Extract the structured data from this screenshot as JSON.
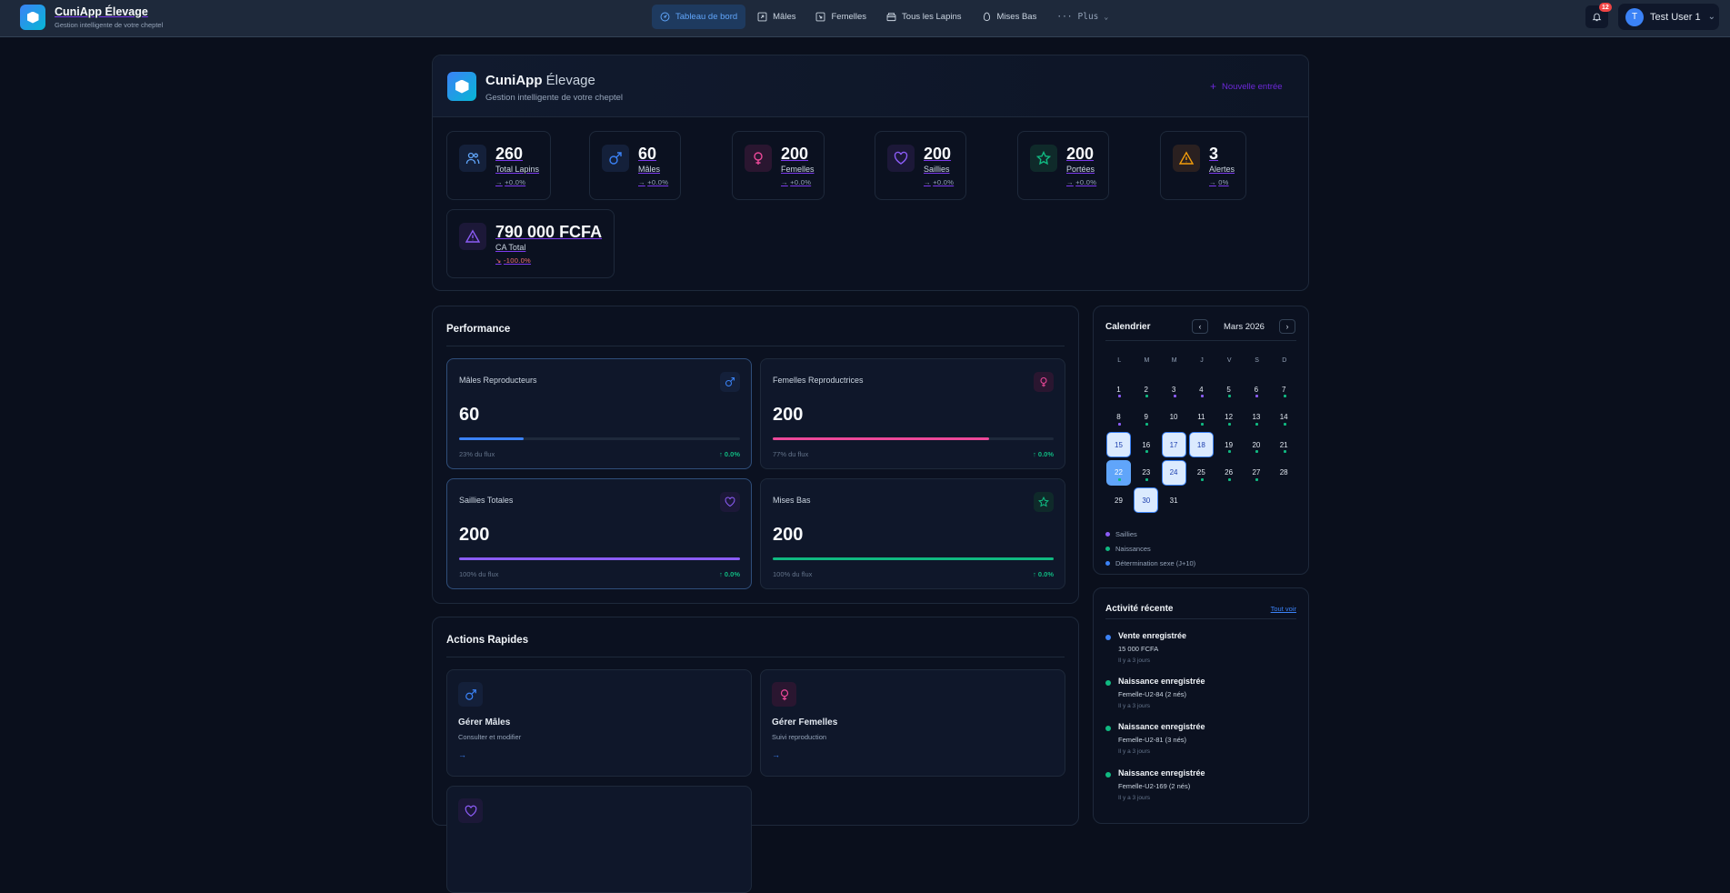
{
  "navbar": {
    "app_title": "CuniApp Élevage",
    "app_subtitle": "Gestion intelligente de votre cheptel",
    "menu": [
      {
        "label": "Tableau de bord",
        "icon": "gauge-icon",
        "active": true
      },
      {
        "label": "Mâles",
        "icon": "arrow-up-right-box-icon"
      },
      {
        "label": "Femelles",
        "icon": "arrow-down-right-box-icon"
      },
      {
        "label": "Tous les Lapins",
        "icon": "tray-icon"
      },
      {
        "label": "Mises Bas",
        "icon": "egg-icon"
      },
      {
        "label": "Plus",
        "icon": "ellipsis-icon"
      }
    ],
    "notifications_count": "12",
    "user": {
      "initial": "T",
      "name": "Test User 1"
    }
  },
  "hero": {
    "title_bold": "CuniApp",
    "title_light": "Élevage",
    "subtitle": "Gestion intelligente de votre cheptel",
    "new_entry_label": "Nouvelle entrée"
  },
  "stats": [
    {
      "value": "260",
      "label": "Total Lapins",
      "trend": "→",
      "change": "+0.0%",
      "color": "#60a5fa",
      "bg": "#14203a"
    },
    {
      "value": "60",
      "label": "Mâles",
      "trend": "→",
      "change": "+0.0%",
      "color": "#3b82f6",
      "bg": "#14203a"
    },
    {
      "value": "200",
      "label": "Femelles",
      "trend": "→",
      "change": "+0.0%",
      "color": "#ec4899",
      "bg": "#2a1630"
    },
    {
      "value": "200",
      "label": "Saillies",
      "trend": "→",
      "change": "+0.0%",
      "color": "#8b5cf6",
      "bg": "#1c1838"
    },
    {
      "value": "200",
      "label": "Portées",
      "trend": "→",
      "change": "+0.0%",
      "color": "#10b981",
      "bg": "#0f2a2a"
    },
    {
      "value": "3",
      "label": "Alertes",
      "trend": "→",
      "change": "0%",
      "color": "#f59e0b",
      "bg": "#2a2020"
    },
    {
      "value": "790 000 FCFA",
      "label": "CA Total",
      "trend": "↘",
      "change": "-100.0%",
      "color": "#8b5cf6",
      "bg": "#1c1838"
    }
  ],
  "performance": {
    "title": "Performance",
    "cards": [
      {
        "title": "Mâles Reproducteurs",
        "value": "60",
        "pct": 23,
        "footer": "23% du flux",
        "change": "↑ 0.0%",
        "color": "#3b82f6"
      },
      {
        "title": "Femelles Reproductrices",
        "value": "200",
        "pct": 77,
        "footer": "77% du flux",
        "change": "↑ 0.0%",
        "color": "#ec4899"
      },
      {
        "title": "Saillies Totales",
        "value": "200",
        "pct": 100,
        "footer": "100% du flux",
        "change": "↑ 0.0%",
        "color": "#8b5cf6"
      },
      {
        "title": "Mises Bas",
        "value": "200",
        "pct": 100,
        "footer": "100% du flux",
        "change": "↑ 0.0%",
        "color": "#10b981"
      }
    ]
  },
  "quick_actions": {
    "title": "Actions Rapides",
    "items": [
      {
        "title": "Gérer Mâles",
        "subtitle": "Consulter et modifier",
        "arrow": "→"
      },
      {
        "title": "Gérer Femelles",
        "subtitle": "Suivi reproduction",
        "arrow": "→"
      }
    ]
  },
  "calendar": {
    "title": "Calendrier",
    "month": "Mars 2026",
    "prev": "‹",
    "next": "›",
    "weekdays": [
      "L",
      "M",
      "M",
      "J",
      "V",
      "S",
      "D"
    ],
    "weeks": [
      [
        {
          "d": "1",
          "dot": "p"
        },
        {
          "d": "2",
          "dot": "g"
        },
        {
          "d": "3",
          "dot": "p"
        },
        {
          "d": "4",
          "dot": "p"
        },
        {
          "d": "5",
          "dot": "g"
        },
        {
          "d": "6",
          "dot": "p"
        },
        {
          "d": "7",
          "dot": "g"
        }
      ],
      [
        {
          "d": "8",
          "dot": "p"
        },
        {
          "d": "9",
          "dot": "g"
        },
        {
          "d": "10"
        },
        {
          "d": "11",
          "dot": "g"
        },
        {
          "d": "12",
          "dot": "g"
        },
        {
          "d": "13",
          "dot": "g"
        },
        {
          "d": "14",
          "dot": "g"
        }
      ],
      [
        {
          "d": "15",
          "sel": true
        },
        {
          "d": "16",
          "dot": "g"
        },
        {
          "d": "17",
          "sel": true
        },
        {
          "d": "18",
          "sel": true
        },
        {
          "d": "19",
          "dot": "g"
        },
        {
          "d": "20",
          "dot": "g"
        },
        {
          "d": "21",
          "dot": "g"
        }
      ],
      [
        {
          "d": "22",
          "today": true,
          "dot": "g"
        },
        {
          "d": "23",
          "dot": "g"
        },
        {
          "d": "24",
          "sel": true
        },
        {
          "d": "25",
          "dot": "g"
        },
        {
          "d": "26",
          "dot": "g"
        },
        {
          "d": "27",
          "dot": "g"
        },
        {
          "d": "28"
        }
      ],
      [
        {
          "d": "29"
        },
        {
          "d": "30",
          "sel": true
        },
        {
          "d": "31"
        }
      ]
    ],
    "legend": [
      {
        "label": "Saillies",
        "color": "#8b5cf6"
      },
      {
        "label": "Naissances",
        "color": "#10b981"
      },
      {
        "label": "Détermination sexe (J+10)",
        "color": "#3b82f6"
      }
    ]
  },
  "activity": {
    "title": "Activité récente",
    "see_all": "Tout voir",
    "items": [
      {
        "title": "Vente enregistrée",
        "detail": "15 000 FCFA",
        "time": "Il y a 3 jours",
        "color": "#3b82f6"
      },
      {
        "title": "Naissance enregistrée",
        "detail": "Femelle-U2-84 (2 nés)",
        "time": "Il y a 3 jours",
        "color": "#10b981"
      },
      {
        "title": "Naissance enregistrée",
        "detail": "Femelle-U2-81 (3 nés)",
        "time": "Il y a 3 jours",
        "color": "#10b981"
      },
      {
        "title": "Naissance enregistrée",
        "detail": "Femelle-U2-169 (2 nés)",
        "time": "Il y a 3 jours",
        "color": "#10b981"
      }
    ]
  }
}
